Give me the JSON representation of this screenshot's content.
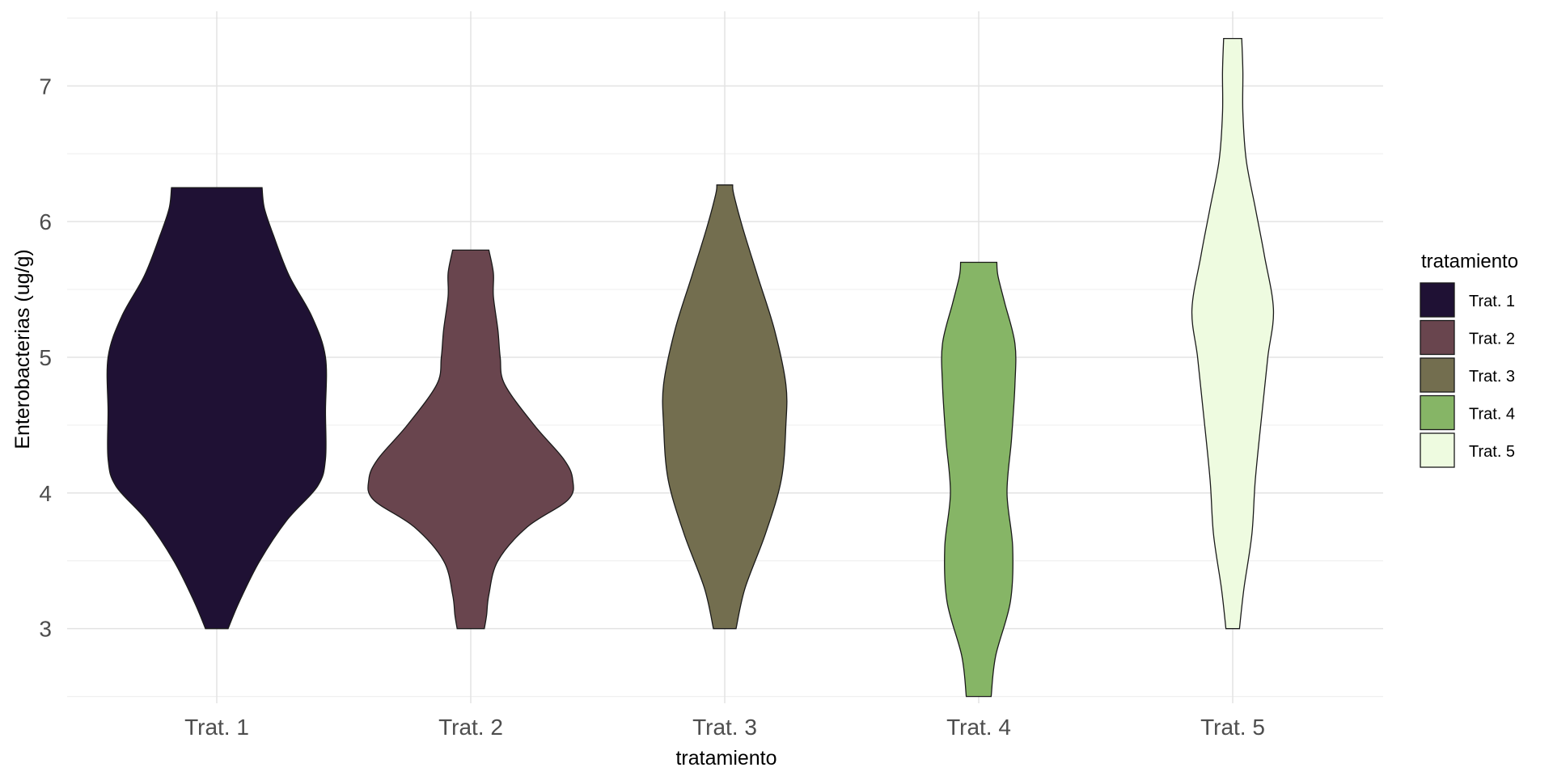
{
  "chart_data": {
    "type": "violin",
    "title": "",
    "xlabel": "tratamiento",
    "ylabel": "Enterobacterias (ug/g)",
    "ylim": [
      2.45,
      7.55
    ],
    "y_ticks": [
      3,
      4,
      5,
      6,
      7
    ],
    "y_tick_labels": [
      "3",
      "4",
      "5",
      "6",
      "7"
    ],
    "grid": true,
    "legend": {
      "title": "tratamiento",
      "position": "right",
      "entries": [
        "Trat. 1",
        "Trat. 2",
        "Trat. 3",
        "Trat. 4",
        "Trat. 5"
      ]
    },
    "categories": [
      "Trat. 1",
      "Trat. 2",
      "Trat. 3",
      "Trat. 4",
      "Trat. 5"
    ],
    "series": [
      {
        "color": "#1f1134",
        "min": 3.0,
        "max": 6.25,
        "density": [
          [
            3.0,
            0.1
          ],
          [
            3.2,
            0.2
          ],
          [
            3.5,
            0.38
          ],
          [
            3.8,
            0.62
          ],
          [
            4.05,
            0.89
          ],
          [
            4.25,
            0.96
          ],
          [
            4.6,
            0.96
          ],
          [
            5.0,
            0.96
          ],
          [
            5.3,
            0.84
          ],
          [
            5.6,
            0.64
          ],
          [
            5.9,
            0.5
          ],
          [
            6.1,
            0.42
          ],
          [
            6.25,
            0.4
          ]
        ]
      },
      {
        "color": "#69454e",
        "min": 3.0,
        "max": 5.79,
        "density": [
          [
            3.0,
            0.12
          ],
          [
            3.1,
            0.14
          ],
          [
            3.25,
            0.16
          ],
          [
            3.5,
            0.24
          ],
          [
            3.75,
            0.5
          ],
          [
            3.95,
            0.86
          ],
          [
            4.1,
            0.9
          ],
          [
            4.25,
            0.82
          ],
          [
            4.5,
            0.56
          ],
          [
            4.8,
            0.3
          ],
          [
            5.0,
            0.26
          ],
          [
            5.2,
            0.24
          ],
          [
            5.45,
            0.2
          ],
          [
            5.62,
            0.2
          ],
          [
            5.79,
            0.16
          ]
        ]
      },
      {
        "color": "#736e4f",
        "min": 3.0,
        "max": 6.27,
        "density": [
          [
            3.0,
            0.1
          ],
          [
            3.3,
            0.18
          ],
          [
            3.7,
            0.36
          ],
          [
            4.1,
            0.5
          ],
          [
            4.5,
            0.54
          ],
          [
            4.8,
            0.54
          ],
          [
            5.2,
            0.44
          ],
          [
            5.6,
            0.29
          ],
          [
            5.95,
            0.16
          ],
          [
            6.2,
            0.08
          ],
          [
            6.27,
            0.07
          ]
        ]
      },
      {
        "color": "#86b566",
        "min": 2.5,
        "max": 5.7,
        "density": [
          [
            2.5,
            0.11
          ],
          [
            2.8,
            0.15
          ],
          [
            3.2,
            0.28
          ],
          [
            3.6,
            0.3
          ],
          [
            4.0,
            0.25
          ],
          [
            4.4,
            0.29
          ],
          [
            4.8,
            0.32
          ],
          [
            5.1,
            0.32
          ],
          [
            5.4,
            0.23
          ],
          [
            5.6,
            0.17
          ],
          [
            5.7,
            0.16
          ]
        ]
      },
      {
        "color": "#eefbe0",
        "min": 3.0,
        "max": 7.35,
        "density": [
          [
            3.0,
            0.06
          ],
          [
            3.3,
            0.1
          ],
          [
            3.7,
            0.17
          ],
          [
            4.1,
            0.2
          ],
          [
            4.6,
            0.26
          ],
          [
            5.0,
            0.31
          ],
          [
            5.35,
            0.36
          ],
          [
            5.75,
            0.28
          ],
          [
            6.1,
            0.2
          ],
          [
            6.45,
            0.12
          ],
          [
            6.8,
            0.09
          ],
          [
            7.1,
            0.09
          ],
          [
            7.35,
            0.08
          ]
        ]
      }
    ]
  }
}
